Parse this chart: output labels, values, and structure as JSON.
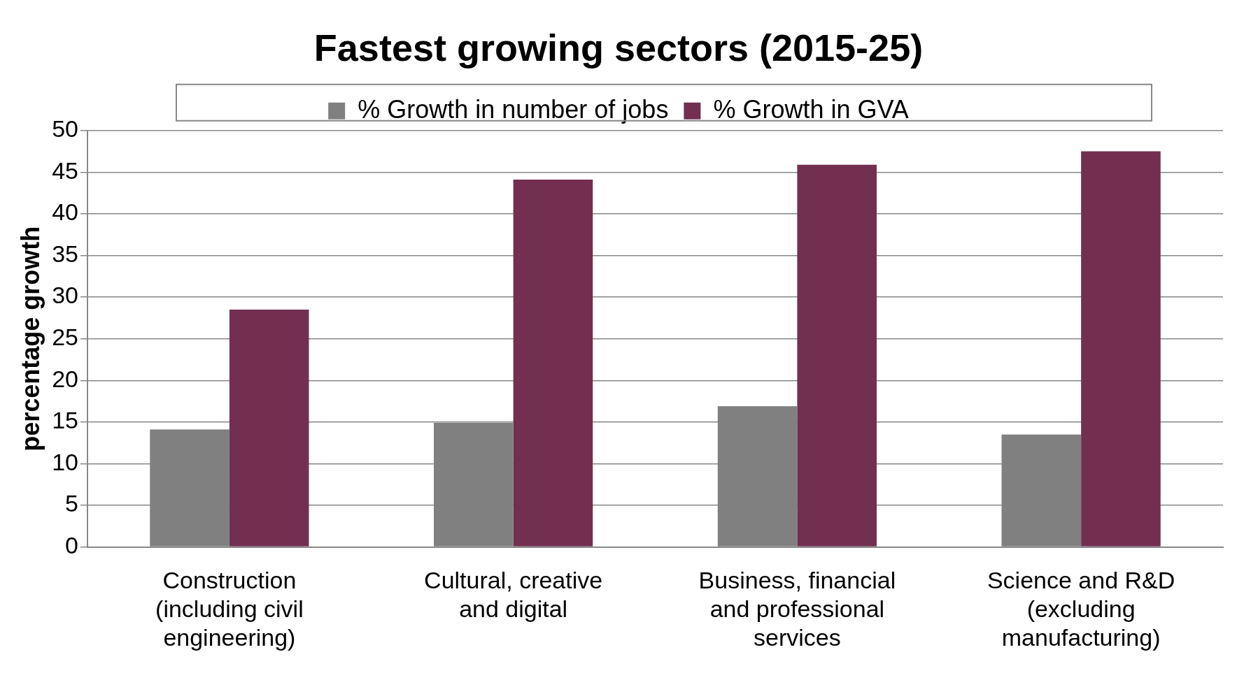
{
  "chart_data": {
    "type": "bar",
    "title": "Fastest growing sectors (2015-25)",
    "ylabel": "percentage growth",
    "categories": [
      "Construction (including civil engineering)",
      "Cultural, creative and digital",
      "Business, financial and professional services",
      "Science and R&D (excluding manufacturing)"
    ],
    "series": [
      {
        "name": "% Growth in number of jobs",
        "color": "#808080",
        "values": [
          14.1,
          14.9,
          16.9,
          13.5
        ]
      },
      {
        "name": "% Growth in GVA",
        "color": "#722f4f",
        "values": [
          28.5,
          44.1,
          45.9,
          47.5
        ]
      }
    ],
    "ylim": [
      0,
      50
    ],
    "yticks": [
      0,
      5,
      10,
      15,
      20,
      25,
      30,
      35,
      40,
      45,
      50
    ],
    "grid": "y",
    "legend": "top"
  }
}
